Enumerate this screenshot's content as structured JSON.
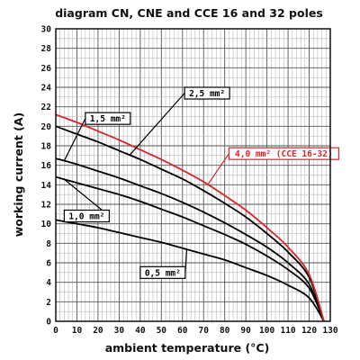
{
  "chart_data": {
    "type": "line",
    "title": "diagram CN, CNE and CCE 16 and 32 poles",
    "xlabel": "ambient temperature (°C)",
    "ylabel": "working current (A)",
    "xlim": [
      0,
      130
    ],
    "ylim": [
      0,
      30
    ],
    "x_ticks": [
      "0",
      "10",
      "20",
      "30",
      "40",
      "50",
      "60",
      "70",
      "80",
      "90",
      "100",
      "110",
      "120",
      "130"
    ],
    "y_ticks": [
      "0",
      "2",
      "4",
      "6",
      "8",
      "10",
      "12",
      "14",
      "16",
      "18",
      "20",
      "22",
      "24",
      "26",
      "28",
      "30"
    ],
    "grid": true,
    "x": [
      0,
      10,
      20,
      30,
      40,
      50,
      60,
      70,
      80,
      90,
      100,
      110,
      120,
      127
    ],
    "series": [
      {
        "name": "0,5 mm²",
        "color": "#000000",
        "values": [
          10.4,
          10.0,
          9.6,
          9.1,
          8.6,
          8.1,
          7.5,
          6.9,
          6.3,
          5.5,
          4.7,
          3.7,
          2.4,
          0
        ]
      },
      {
        "name": "1,0 mm²",
        "color": "#000000",
        "values": [
          14.8,
          14.2,
          13.6,
          13.0,
          12.3,
          11.5,
          10.7,
          9.8,
          8.9,
          7.9,
          6.7,
          5.3,
          3.4,
          0
        ]
      },
      {
        "name": "1,5 mm²",
        "color": "#000000",
        "values": [
          16.7,
          16.1,
          15.4,
          14.7,
          13.9,
          13.1,
          12.2,
          11.2,
          10.1,
          8.9,
          7.6,
          6.0,
          3.8,
          0
        ]
      },
      {
        "name": "2,5 mm²",
        "color": "#000000",
        "values": [
          20.0,
          19.2,
          18.4,
          17.5,
          16.6,
          15.6,
          14.6,
          13.4,
          12.1,
          10.7,
          9.0,
          7.1,
          4.5,
          0
        ]
      },
      {
        "name": "4,0 mm² (CCE 16-32)",
        "color": "#d9262a",
        "values": [
          21.2,
          20.4,
          19.5,
          18.6,
          17.6,
          16.6,
          15.5,
          14.3,
          12.9,
          11.4,
          9.6,
          7.6,
          4.8,
          0
        ]
      }
    ]
  }
}
